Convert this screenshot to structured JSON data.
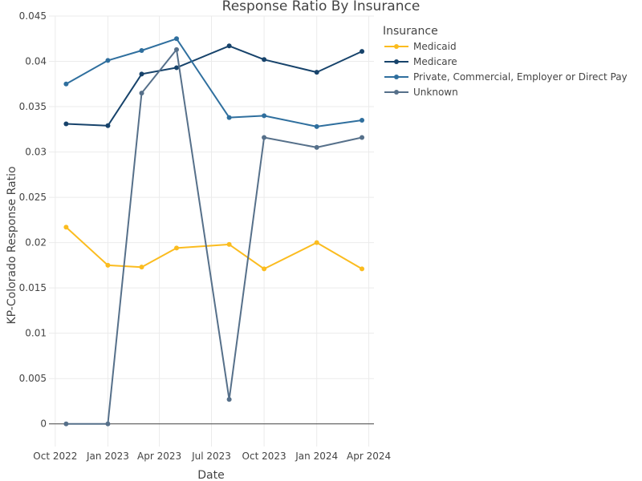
{
  "chart_data": {
    "type": "line",
    "title": "Response Ratio By Insurance",
    "xlabel": "Date",
    "ylabel": "KP-Colorado Response Ratio",
    "x": [
      "2022-10-20",
      "2023-01-01",
      "2023-03-01",
      "2023-05-01",
      "2023-08-01",
      "2023-10-01",
      "2024-01-01",
      "2024-03-20"
    ],
    "xlim": [
      "2022-09-20",
      "2024-04-10"
    ],
    "xticks": [
      {
        "date": "2022-10-01",
        "label": "Oct 2022"
      },
      {
        "date": "2023-01-01",
        "label": "Jan 2023"
      },
      {
        "date": "2023-04-01",
        "label": "Apr 2023"
      },
      {
        "date": "2023-07-01",
        "label": "Jul 2023"
      },
      {
        "date": "2023-10-01",
        "label": "Oct 2023"
      },
      {
        "date": "2024-01-01",
        "label": "Jan 2024"
      },
      {
        "date": "2024-04-01",
        "label": "Apr 2024"
      }
    ],
    "ylim": [
      -0.0025,
      0.045
    ],
    "yticks": [
      0,
      0.005,
      0.01,
      0.015,
      0.02,
      0.025,
      0.03,
      0.035,
      0.04,
      0.045
    ],
    "ytick_labels": [
      "0",
      "0.005",
      "0.01",
      "0.015",
      "0.02",
      "0.025",
      "0.03",
      "0.035",
      "0.04",
      "0.045"
    ],
    "grid": true,
    "legend_title": "Insurance",
    "legend_position": "top-right",
    "series": [
      {
        "name": "Medicaid",
        "color": "#fbbc1f",
        "values": [
          0.0217,
          0.0175,
          0.0173,
          0.0194,
          0.0198,
          0.0171,
          0.02,
          0.0171
        ]
      },
      {
        "name": "Medicare",
        "color": "#17436b",
        "values": [
          0.0331,
          0.0329,
          0.0386,
          0.0393,
          0.0417,
          0.0402,
          0.0388,
          0.0411
        ]
      },
      {
        "name": "Private, Commercial, Employer or Direct Pay",
        "color": "#2f6f9e",
        "values": [
          0.0375,
          0.0401,
          0.0412,
          0.0425,
          0.0338,
          0.034,
          0.0328,
          0.0335
        ]
      },
      {
        "name": "Unknown",
        "color": "#56708a",
        "values": [
          0.0,
          0.0,
          0.0365,
          0.0413,
          0.0027,
          0.0316,
          0.0305,
          0.0316
        ]
      }
    ]
  }
}
